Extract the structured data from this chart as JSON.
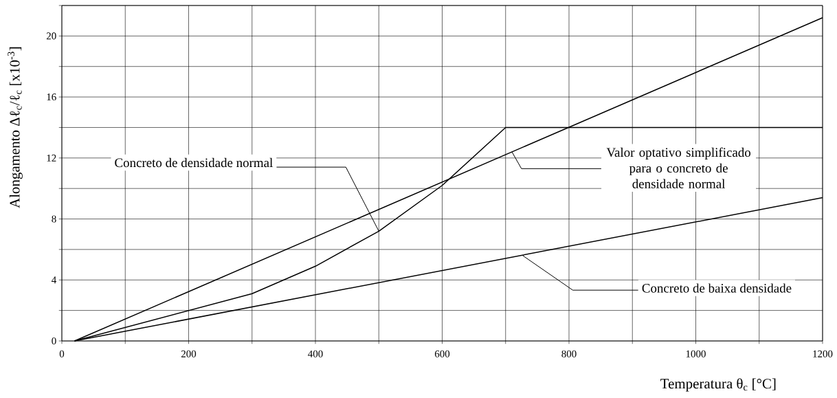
{
  "chart_data": {
    "type": "line",
    "xlabel": "Temperatura θ$_{c}$ [°C]",
    "ylabel": "Alongamento Δℓ$_{c}$/ℓ$_{c}$ [x10$^{-3}$]",
    "xlim": [
      0,
      1200
    ],
    "ylim": [
      0,
      22
    ],
    "xticks": [
      0,
      {
        "value": 100,
        "label": null
      },
      200,
      {
        "value": 300,
        "label": null
      },
      400,
      {
        "value": 500,
        "label": null
      },
      600,
      {
        "value": 700,
        "label": null
      },
      800,
      {
        "value": 900,
        "label": null
      },
      1000,
      {
        "value": 1100,
        "label": null
      },
      1200
    ],
    "yticks": [
      0,
      {
        "value": 2,
        "label": null
      },
      4,
      {
        "value": 6,
        "label": null
      },
      8,
      {
        "value": 10,
        "label": null
      },
      12,
      {
        "value": 14,
        "label": null
      },
      16,
      {
        "value": 18,
        "label": null
      },
      20,
      {
        "value": 22,
        "label": null
      }
    ],
    "grid": true,
    "line_style": "solid",
    "series": [
      {
        "color": "#000000",
        "x": [
          20,
          300,
          400,
          500,
          600,
          700,
          1200
        ],
        "values": [
          0,
          3.1,
          4.9,
          7.2,
          10.2,
          14,
          14
        ]
      },
      {
        "color": "#000000",
        "x": [
          20,
          1200
        ],
        "values": [
          0,
          21.2
        ]
      },
      {
        "color": "#000000",
        "x": [
          20,
          1200
        ],
        "values": [
          0,
          9.4
        ]
      }
    ],
    "annotations": [
      {
        "text": "Concreto de densidade normal",
        "x": 500,
        "y": 7.2
      },
      {
        "text": "Valor optativo simplificado para o concreto de densidade normal",
        "x": 710,
        "y": 12.4
      },
      {
        "text": "Concreto de baixa densidade",
        "x": 727,
        "y": 5.6
      }
    ]
  }
}
